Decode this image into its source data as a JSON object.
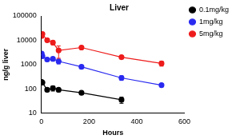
{
  "chart_data": {
    "type": "line",
    "title": "Liver",
    "x_label": "Hours",
    "y_label": "ng/g liver",
    "log": "y",
    "grid": false,
    "legend": "right",
    "marker": "circle",
    "xlim": [
      0,
      600
    ],
    "xticks": [
      0,
      200,
      400,
      600
    ],
    "ylim": [
      10,
      100000
    ],
    "yticks": [
      10,
      100,
      1000,
      10000,
      100000
    ],
    "series": [
      {
        "name": "0.1mg/kg",
        "color": "#000000",
        "x": [
          1,
          4,
          24,
          48,
          72,
          168,
          336
        ],
        "values": [
          190,
          180,
          90,
          105,
          90,
          68,
          35
        ],
        "errors": [
          30,
          20,
          10,
          25,
          15,
          8,
          10
        ]
      },
      {
        "name": "1mg/kg",
        "color": "#2a2af0",
        "x": [
          1,
          4,
          24,
          48,
          72,
          168,
          336,
          504
        ],
        "values": [
          2800,
          2200,
          1600,
          1700,
          1350,
          800,
          280,
          140
        ],
        "errors": [
          400,
          300,
          200,
          200,
          300,
          100,
          60,
          20
        ]
      },
      {
        "name": "5mg/kg",
        "color": "#ee1c1c",
        "x": [
          1,
          4,
          24,
          48,
          72,
          168,
          336,
          504
        ],
        "values": [
          15000,
          18000,
          10000,
          8000,
          3800,
          5000,
          2000,
          1100
        ],
        "errors": [
          2000,
          3000,
          1500,
          1500,
          2000,
          500,
          300,
          250
        ]
      }
    ]
  }
}
